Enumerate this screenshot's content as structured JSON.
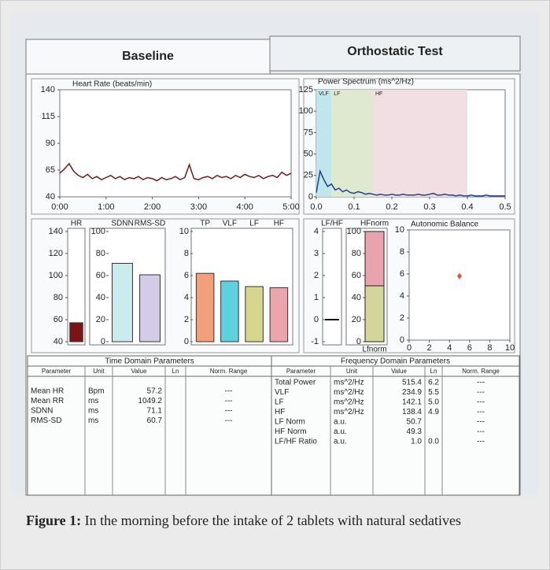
{
  "tabs": [
    "Baseline",
    "Orthostatic Test"
  ],
  "chart_data": [
    {
      "type": "line",
      "title": "Heart Rate (beats/min)",
      "x": [
        0,
        0.1,
        0.2,
        0.3,
        0.4,
        0.5,
        0.6,
        0.7,
        0.8,
        0.9,
        1,
        1.1,
        1.2,
        1.3,
        1.4,
        1.5,
        1.6,
        1.7,
        1.8,
        1.9,
        2,
        2.1,
        2.2,
        2.3,
        2.4,
        2.5,
        2.6,
        2.7,
        2.8,
        2.9,
        3,
        3.1,
        3.2,
        3.3,
        3.4,
        3.5,
        3.6,
        3.7,
        3.8,
        3.9,
        4,
        4.1,
        4.2,
        4.3,
        4.4,
        4.5,
        4.6,
        4.7,
        4.8,
        4.9,
        5
      ],
      "series": [
        {
          "color": "#6e1a1a",
          "values": [
            62,
            66,
            71,
            64,
            60,
            58,
            61,
            57,
            59,
            56,
            58,
            60,
            57,
            59,
            56,
            58,
            57,
            59,
            56,
            58,
            57,
            55,
            58,
            56,
            57,
            59,
            56,
            58,
            70,
            57,
            56,
            58,
            59,
            57,
            60,
            58,
            59,
            57,
            60,
            58,
            61,
            59,
            58,
            60,
            57,
            59,
            60,
            58,
            63,
            60,
            62
          ]
        }
      ],
      "xlim": [
        0,
        5
      ],
      "xticks": [
        {
          "value": 0,
          "label": "0:00"
        },
        {
          "value": 1,
          "label": "1:00"
        },
        {
          "value": 2,
          "label": "2:00"
        },
        {
          "value": 3,
          "label": "3:00"
        },
        {
          "value": 4,
          "label": "4:00"
        },
        {
          "value": 5,
          "label": "5:00"
        }
      ],
      "ylim": [
        40,
        140
      ],
      "yticks": [
        40,
        65,
        90,
        115,
        140
      ]
    },
    {
      "type": "line",
      "title": "Power Spectrum (ms^2/Hz)",
      "x": [
        0,
        0.01,
        0.02,
        0.03,
        0.04,
        0.05,
        0.06,
        0.07,
        0.08,
        0.09,
        0.1,
        0.11,
        0.12,
        0.13,
        0.14,
        0.15,
        0.16,
        0.17,
        0.18,
        0.19,
        0.2,
        0.21,
        0.22,
        0.23,
        0.24,
        0.25,
        0.26,
        0.27,
        0.28,
        0.29,
        0.3,
        0.31,
        0.32,
        0.33,
        0.34,
        0.35,
        0.36,
        0.37,
        0.38,
        0.39,
        0.4,
        0.41,
        0.42,
        0.43,
        0.44,
        0.45,
        0.46,
        0.47,
        0.48,
        0.49,
        0.5
      ],
      "series": [
        {
          "color": "#1f3f8f",
          "values": [
            5,
            30,
            20,
            12,
            15,
            8,
            10,
            6,
            8,
            5,
            4,
            6,
            5,
            3,
            4,
            3,
            2,
            3,
            2,
            2,
            3,
            2,
            2,
            3,
            2,
            2,
            2,
            3,
            2,
            2,
            3,
            4,
            2,
            2,
            3,
            2,
            2,
            1,
            2,
            1,
            1,
            2,
            1,
            1,
            1,
            2,
            1,
            1,
            1,
            1,
            1
          ]
        }
      ],
      "bands": [
        {
          "name": "VLF",
          "range": [
            0,
            0.04
          ],
          "color": "#bfe6ec"
        },
        {
          "name": "LF",
          "range": [
            0.04,
            0.15
          ],
          "color": "#dfe9cf"
        },
        {
          "name": "HF",
          "range": [
            0.15,
            0.4
          ],
          "color": "#f1dfe4"
        }
      ],
      "xlim": [
        0,
        0.5
      ],
      "xticks": [
        {
          "value": 0,
          "label": "0.0"
        },
        0.1,
        0.2,
        0.3,
        0.4,
        0.5
      ],
      "ylim": [
        0,
        125
      ],
      "yticks": [
        0,
        25,
        50,
        75,
        100,
        125
      ]
    },
    {
      "type": "bar",
      "categories": [
        "HR"
      ],
      "values": [
        57.2
      ],
      "color": "#7a1418",
      "ylim": [
        40,
        140
      ],
      "yticks": [
        40,
        60,
        80,
        100,
        120,
        140
      ]
    },
    {
      "type": "bar",
      "categories": [
        "SDNN",
        "RMS-SD"
      ],
      "values": [
        71.1,
        60.7
      ],
      "colors": [
        "#c9ecef",
        "#d4cce6"
      ],
      "ylim": [
        0,
        100
      ],
      "yticks": [
        0,
        20,
        40,
        60,
        80,
        100
      ]
    },
    {
      "type": "bar",
      "categories": [
        "TP",
        "VLF",
        "LF",
        "HF"
      ],
      "values": [
        6.2,
        5.5,
        5.0,
        4.9
      ],
      "colors": [
        "#f0a07a",
        "#5fd0de",
        "#d6d68e",
        "#eba6ad"
      ],
      "ylim": [
        0,
        10
      ],
      "yticks": [
        0,
        2,
        4,
        6,
        8,
        10
      ]
    },
    {
      "type": "marker",
      "categories": [
        "LF/HF"
      ],
      "values": [
        0.0
      ],
      "color": "#111111",
      "ylim": [
        -1,
        4
      ],
      "yticks": [
        -1,
        0,
        1,
        2,
        3,
        4
      ]
    },
    {
      "type": "stacked_bar",
      "series": [
        {
          "name": "Lfnorm",
          "color": "#d4d59a",
          "values": [
            50.7
          ]
        },
        {
          "name": "HFnorm",
          "color": "#e8a3ad",
          "values": [
            49.3
          ]
        }
      ],
      "ylim": [
        0,
        100
      ],
      "yticks": [
        0,
        20,
        40,
        60,
        80,
        100
      ]
    },
    {
      "type": "scatter",
      "title": "Autonomic Balance",
      "series": [
        {
          "color": "#e05030",
          "x": [
            5
          ],
          "values": [
            5.8
          ]
        }
      ],
      "xlim": [
        0,
        10
      ],
      "xticks": [
        0,
        2,
        4,
        6,
        8,
        10
      ],
      "ylim": [
        0,
        10
      ],
      "yticks": [
        0,
        2,
        4,
        6,
        8,
        10
      ]
    }
  ],
  "tables": [
    {
      "title": "Time Domain Parameters",
      "columns": [
        "Parameter",
        "Unit",
        "Value",
        "Ln",
        "Norm. Range"
      ],
      "rows": [
        [
          "Mean HR",
          "Bpm",
          "57.2",
          null,
          "---"
        ],
        [
          "Mean RR",
          "ms",
          "1049.2",
          null,
          "---"
        ],
        [
          "SDNN",
          "ms",
          "71.1",
          null,
          "---"
        ],
        [
          "RMS-SD",
          "ms",
          "60.7",
          null,
          "---"
        ]
      ]
    },
    {
      "title": "Frequency Domain Parameters",
      "columns": [
        "Parameter",
        "Unit",
        "Value",
        "Ln",
        "Norm. Range"
      ],
      "rows": [
        [
          "Total Power",
          "ms^2/Hz",
          "515.4",
          "6.2",
          "---"
        ],
        [
          "VLF",
          "ms^2/Hz",
          "234.9",
          "5.5",
          "---"
        ],
        [
          "LF",
          "ms^2/Hz",
          "142.1",
          "5.0",
          "---"
        ],
        [
          "HF",
          "ms^2/Hz",
          "138.4",
          "4.9",
          "---"
        ],
        [
          "LF Norm",
          "a.u.",
          "50.7",
          null,
          "---"
        ],
        [
          "HF Norm",
          "a.u.",
          "49.3",
          null,
          "---"
        ],
        [
          "LF/HF Ratio",
          "a.u.",
          "1.0",
          "0.0",
          "---"
        ]
      ]
    }
  ],
  "caption": {
    "label": "Figure 1:",
    "text": "In the morning before the intake of 2 tablets with natural sedatives"
  }
}
